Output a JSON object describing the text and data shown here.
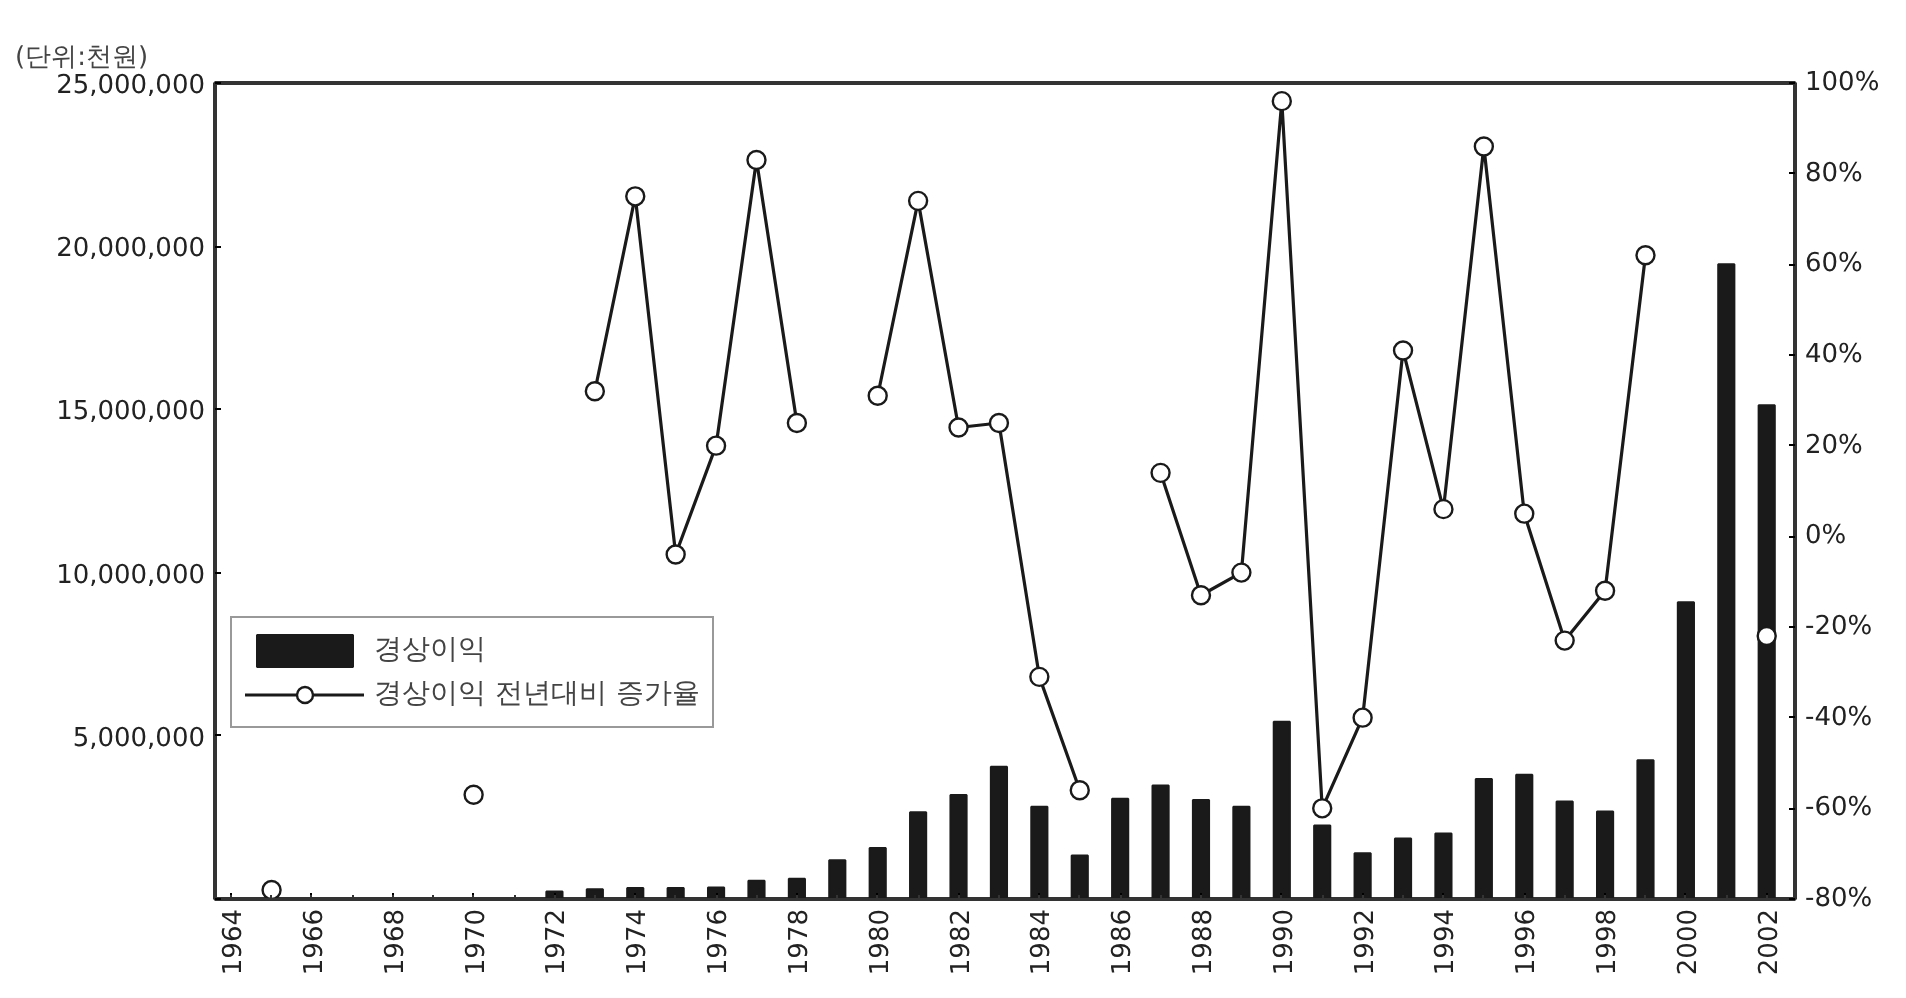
{
  "chart_data": {
    "type": "bar",
    "ylabel": "(단위:천원)",
    "x": [
      1965,
      1966,
      1967,
      1968,
      1969,
      1970,
      1971,
      1972,
      1973,
      1974,
      1975,
      1976,
      1977,
      1978,
      1979,
      1980,
      1981,
      1982,
      1983,
      1984,
      1985,
      1986,
      1987,
      1988,
      1989,
      1990,
      1991,
      1992,
      1993,
      1994,
      1995,
      1996,
      1997,
      1998,
      1999,
      2000,
      2001,
      2002
    ],
    "series": [
      {
        "name": "경상이익",
        "type": "bar",
        "color": "#1a1a1a",
        "values": [
          null,
          null,
          null,
          null,
          null,
          null,
          null,
          230000,
          300000,
          340000,
          340000,
          350000,
          560000,
          620000,
          1190000,
          1560000,
          2660000,
          3190000,
          4050000,
          2830000,
          1330000,
          3070000,
          3480000,
          3030000,
          2830000,
          5430000,
          2250000,
          1400000,
          1850000,
          2010000,
          3680000,
          3810000,
          2990000,
          2680000,
          4250000,
          9090000,
          19450000,
          15130000
        ]
      },
      {
        "name": "경상이익 전년대비 증가율",
        "type": "line",
        "axis": "y2",
        "color": "#1a1a1a",
        "values": [
          -78,
          null,
          null,
          null,
          null,
          -57,
          null,
          null,
          32,
          75,
          -4,
          20,
          83,
          25,
          null,
          31,
          74,
          24,
          25,
          -31,
          -56,
          null,
          14,
          -13,
          -8,
          96,
          -60,
          -40,
          41,
          6,
          86,
          5,
          -23,
          -12,
          62,
          null,
          null,
          -22
        ]
      }
    ],
    "xlim": [
      1963.6,
      2002.7
    ],
    "xticks": [
      1964,
      1966,
      1968,
      1970,
      1972,
      1974,
      1976,
      1978,
      1980,
      1982,
      1984,
      1986,
      1988,
      1990,
      1992,
      1994,
      1996,
      1998,
      2000,
      2002
    ],
    "ylim": [
      0,
      25000000
    ],
    "yticks": [
      {
        "value": 0,
        "label": null
      },
      {
        "value": 5000000,
        "label": "5,000,000"
      },
      {
        "value": 10000000,
        "label": "10,000,000"
      },
      {
        "value": 15000000,
        "label": "15,000,000"
      },
      {
        "value": 20000000,
        "label": "20,000,000"
      },
      {
        "value": 25000000,
        "label": "25,000,000"
      }
    ],
    "y2lim": [
      -80,
      100
    ],
    "y2ticks": [
      {
        "value": -80,
        "label": "-80%"
      },
      {
        "value": -60,
        "label": "-60%"
      },
      {
        "value": -40,
        "label": "-40%"
      },
      {
        "value": -20,
        "label": "-20%"
      },
      {
        "value": 0,
        "label": "0%"
      },
      {
        "value": 20,
        "label": "20%"
      },
      {
        "value": 40,
        "label": "40%"
      },
      {
        "value": 60,
        "label": "60%"
      },
      {
        "value": 80,
        "label": "80%"
      },
      {
        "value": 100,
        "label": "100%"
      }
    ],
    "marker": "circle",
    "line_style": "solid",
    "grid": false,
    "legend": "bottom left"
  }
}
